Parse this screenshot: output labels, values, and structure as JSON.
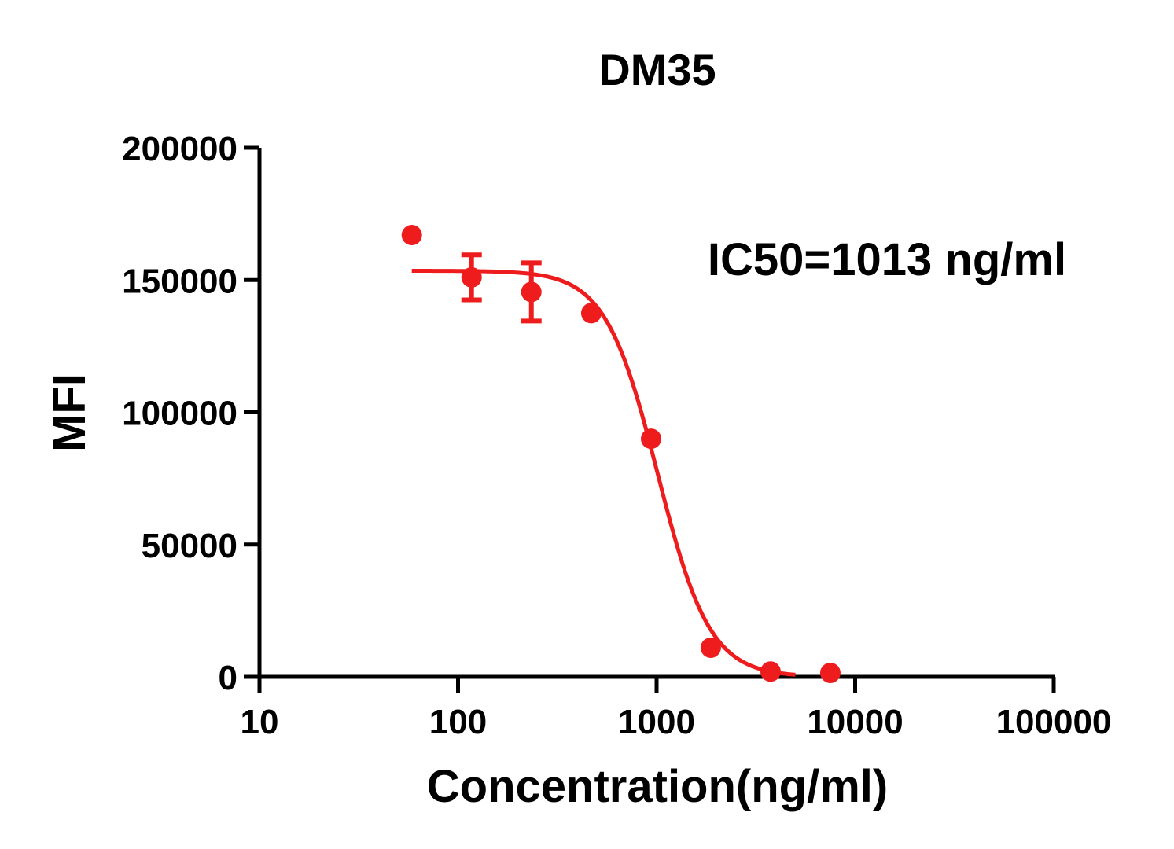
{
  "chart_data": {
    "type": "scatter",
    "title": "DM35",
    "xlabel": "Concentration(ng/ml)",
    "ylabel": "MFI",
    "annotation": "IC50=1013 ng/ml",
    "x_scale": "log",
    "xlim": [
      10,
      100000
    ],
    "ylim": [
      0,
      200000
    ],
    "x_ticks": [
      10,
      100,
      1000,
      10000,
      100000
    ],
    "x_tick_labels": [
      "10",
      "100",
      "1000",
      "10000",
      "100000"
    ],
    "y_ticks": [
      0,
      50000,
      100000,
      150000,
      200000
    ],
    "y_tick_labels": [
      "0",
      "50000",
      "100000",
      "150000",
      "200000"
    ],
    "grid": false,
    "color": "#ee1c1c",
    "series": [
      {
        "points": [
          {
            "x": 58.5,
            "y": 167000,
            "err": 0
          },
          {
            "x": 117,
            "y": 151000,
            "err": 8500
          },
          {
            "x": 234,
            "y": 145500,
            "err": 11000
          },
          {
            "x": 469,
            "y": 137500,
            "err": 0
          },
          {
            "x": 938,
            "y": 90000,
            "err": 0
          },
          {
            "x": 1875,
            "y": 11000,
            "err": 0
          },
          {
            "x": 3750,
            "y": 2000,
            "err": 0
          },
          {
            "x": 7500,
            "y": 1500,
            "err": 0
          }
        ],
        "fit": {
          "model": "four-parameter logistic",
          "top": 153500,
          "bottom": 0,
          "ic50": 1013,
          "hill": 3.3,
          "x_range": [
            58.5,
            5000
          ]
        }
      }
    ]
  }
}
